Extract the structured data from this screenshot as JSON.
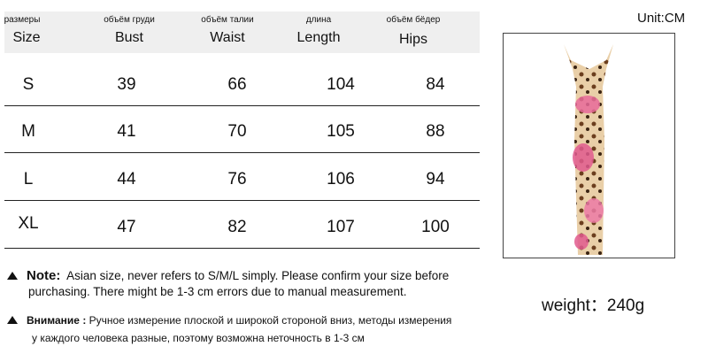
{
  "unit": "Unit:CM",
  "headers": [
    {
      "ru": "размеры",
      "en": "Size"
    },
    {
      "ru": "объём груди",
      "en": "Bust"
    },
    {
      "ru": "объём талии",
      "en": "Waist"
    },
    {
      "ru": "длина",
      "en": "Length"
    },
    {
      "ru": "объём бёдер",
      "en": "Hips"
    }
  ],
  "rows": [
    [
      "S",
      "39",
      "66",
      "104",
      "84"
    ],
    [
      "M",
      "41",
      "70",
      "105",
      "88"
    ],
    [
      "L",
      "44",
      "76",
      "106",
      "94"
    ],
    [
      "XL",
      "47",
      "82",
      "107",
      "100"
    ]
  ],
  "note": {
    "label": "Note:",
    "text": "Asian size, never refers to S/M/L simply. Please confirm your size before",
    "text2": "purchasing. There might be 1-3 cm errors due to manual measurement."
  },
  "note_ru": {
    "label": "Внимание :",
    "text": "Ручное измерение плоской и широкой стороной вниз, методы измерения",
    "text2": "у каждого человека разные, поэтому возможна неточность в 1-3 см"
  },
  "weight": "weight：240g"
}
